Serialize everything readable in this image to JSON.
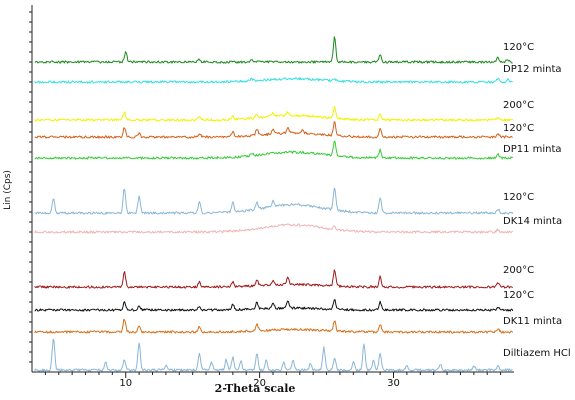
{
  "chart_data": {
    "type": "line",
    "title": "",
    "xlabel": "2-Theta scale",
    "ylabel": "Lin (Cps)",
    "xlim": [
      3,
      39
    ],
    "x_ticks": [
      10,
      20,
      30
    ],
    "grid": false,
    "legend": "none",
    "series": [
      {
        "name": "120°C",
        "color": "#1a8a1a",
        "peaks": [
          [
            10.0,
            1.6
          ],
          [
            15.5,
            0.4
          ],
          [
            19.4,
            0.4
          ],
          [
            25.6,
            3.8
          ],
          [
            29.0,
            1.2
          ],
          [
            37.8,
            0.7
          ],
          [
            38.5,
            0.4
          ]
        ],
        "hump": 0.0
      },
      {
        "name": "DP12 minta",
        "color": "#33e0e0",
        "peaks": [
          [
            19.4,
            0.3
          ],
          [
            25.6,
            0.3
          ],
          [
            37.8,
            0.5
          ],
          [
            38.5,
            0.4
          ]
        ],
        "hump": 0.5
      },
      {
        "name": "200°C",
        "color": "#f2f200",
        "peaks": [
          [
            9.9,
            1.2
          ],
          [
            15.5,
            0.6
          ],
          [
            18.0,
            0.5
          ],
          [
            19.8,
            0.6
          ],
          [
            21.0,
            0.5
          ],
          [
            22.1,
            0.6
          ],
          [
            25.6,
            1.8
          ],
          [
            29.0,
            1.0
          ],
          [
            37.8,
            0.4
          ]
        ],
        "hump": 0.7
      },
      {
        "name": "120°C",
        "color": "#d4601a",
        "peaks": [
          [
            9.9,
            1.4
          ],
          [
            11.0,
            0.6
          ],
          [
            15.5,
            0.6
          ],
          [
            18.0,
            0.8
          ],
          [
            19.8,
            0.9
          ],
          [
            21.0,
            0.7
          ],
          [
            22.1,
            0.8
          ],
          [
            23.2,
            0.5
          ],
          [
            25.6,
            2.2
          ],
          [
            29.0,
            1.3
          ],
          [
            37.8,
            0.6
          ]
        ],
        "hump": 0.6
      },
      {
        "name": "DP11 minta",
        "color": "#34cc34",
        "peaks": [
          [
            19.4,
            0.4
          ],
          [
            25.6,
            2.4
          ],
          [
            29.0,
            1.2
          ],
          [
            37.8,
            0.6
          ]
        ],
        "hump": 0.9
      },
      {
        "name": "120°C",
        "color": "#8ab6d6",
        "peaks": [
          [
            4.6,
            2.2
          ],
          [
            9.9,
            3.8
          ],
          [
            11.0,
            2.5
          ],
          [
            15.5,
            1.7
          ],
          [
            18.0,
            1.5
          ],
          [
            19.8,
            1.0
          ],
          [
            21.0,
            0.8
          ],
          [
            25.6,
            3.5
          ],
          [
            29.0,
            2.4
          ],
          [
            37.8,
            0.6
          ]
        ],
        "hump": 1.3
      },
      {
        "name": "DK14 minta",
        "color": "#f0b4b4",
        "peaks": [
          [
            25.6,
            0.5
          ],
          [
            37.8,
            0.4
          ]
        ],
        "hump": 1.1
      },
      {
        "name": "200°C",
        "color": "#a01818",
        "peaks": [
          [
            9.9,
            2.4
          ],
          [
            15.5,
            0.8
          ],
          [
            18.0,
            0.7
          ],
          [
            19.8,
            0.9
          ],
          [
            21.0,
            0.6
          ],
          [
            22.1,
            1.0
          ],
          [
            25.6,
            2.4
          ],
          [
            29.0,
            1.6
          ],
          [
            37.8,
            0.6
          ]
        ],
        "hump": 0.4
      },
      {
        "name": "120°C",
        "color": "#111111",
        "peaks": [
          [
            9.9,
            1.2
          ],
          [
            11.0,
            0.7
          ],
          [
            15.5,
            0.5
          ],
          [
            18.0,
            0.8
          ],
          [
            19.8,
            1.0
          ],
          [
            21.0,
            0.8
          ],
          [
            22.1,
            1.1
          ],
          [
            25.6,
            1.6
          ],
          [
            29.0,
            1.2
          ],
          [
            37.8,
            0.5
          ]
        ],
        "hump": 0.3
      },
      {
        "name": "DK11 minta",
        "color": "#d4701a",
        "peaks": [
          [
            9.9,
            2.0
          ],
          [
            11.0,
            0.8
          ],
          [
            15.5,
            0.8
          ],
          [
            19.8,
            1.0
          ],
          [
            25.6,
            1.6
          ],
          [
            29.0,
            1.2
          ],
          [
            37.8,
            0.5
          ]
        ],
        "hump": 0.4
      },
      {
        "name": "Diltiazem HCl",
        "color": "#8ab6d6",
        "peaks": [
          [
            4.6,
            5.0
          ],
          [
            8.5,
            1.2
          ],
          [
            9.9,
            1.5
          ],
          [
            11.0,
            4.2
          ],
          [
            13.0,
            0.8
          ],
          [
            15.5,
            2.5
          ],
          [
            16.4,
            1.2
          ],
          [
            17.5,
            1.6
          ],
          [
            18.0,
            2.0
          ],
          [
            18.6,
            1.4
          ],
          [
            19.8,
            2.5
          ],
          [
            20.5,
            1.5
          ],
          [
            21.8,
            1.2
          ],
          [
            22.5,
            1.4
          ],
          [
            23.8,
            1.0
          ],
          [
            24.8,
            3.5
          ],
          [
            25.6,
            2.0
          ],
          [
            27.0,
            1.2
          ],
          [
            27.8,
            4.0
          ],
          [
            28.5,
            1.5
          ],
          [
            29.0,
            2.5
          ],
          [
            31.0,
            0.8
          ],
          [
            33.5,
            0.8
          ],
          [
            36.0,
            0.6
          ],
          [
            37.8,
            0.6
          ]
        ],
        "hump": 0.0
      }
    ]
  }
}
